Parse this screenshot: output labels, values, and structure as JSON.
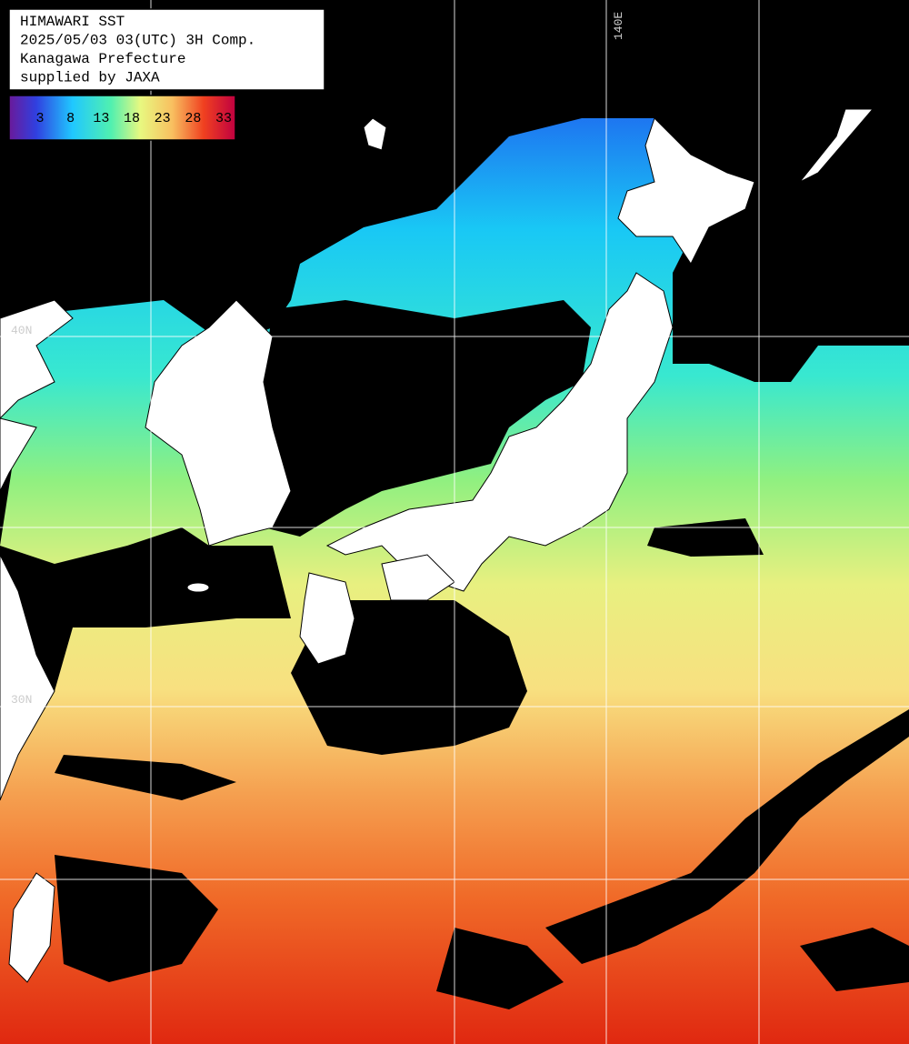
{
  "header": {
    "lines": [
      "HIMAWARI SST",
      "2025/05/03 03(UTC) 3H Comp.",
      "Kanagawa Prefecture",
      "supplied by JAXA"
    ]
  },
  "colorbar": {
    "ticks": [
      3,
      8,
      13,
      18,
      23,
      28,
      33
    ]
  },
  "grid_labels": {
    "longitude": [
      "140E"
    ],
    "latitude": [
      "40N",
      "30N"
    ]
  }
}
